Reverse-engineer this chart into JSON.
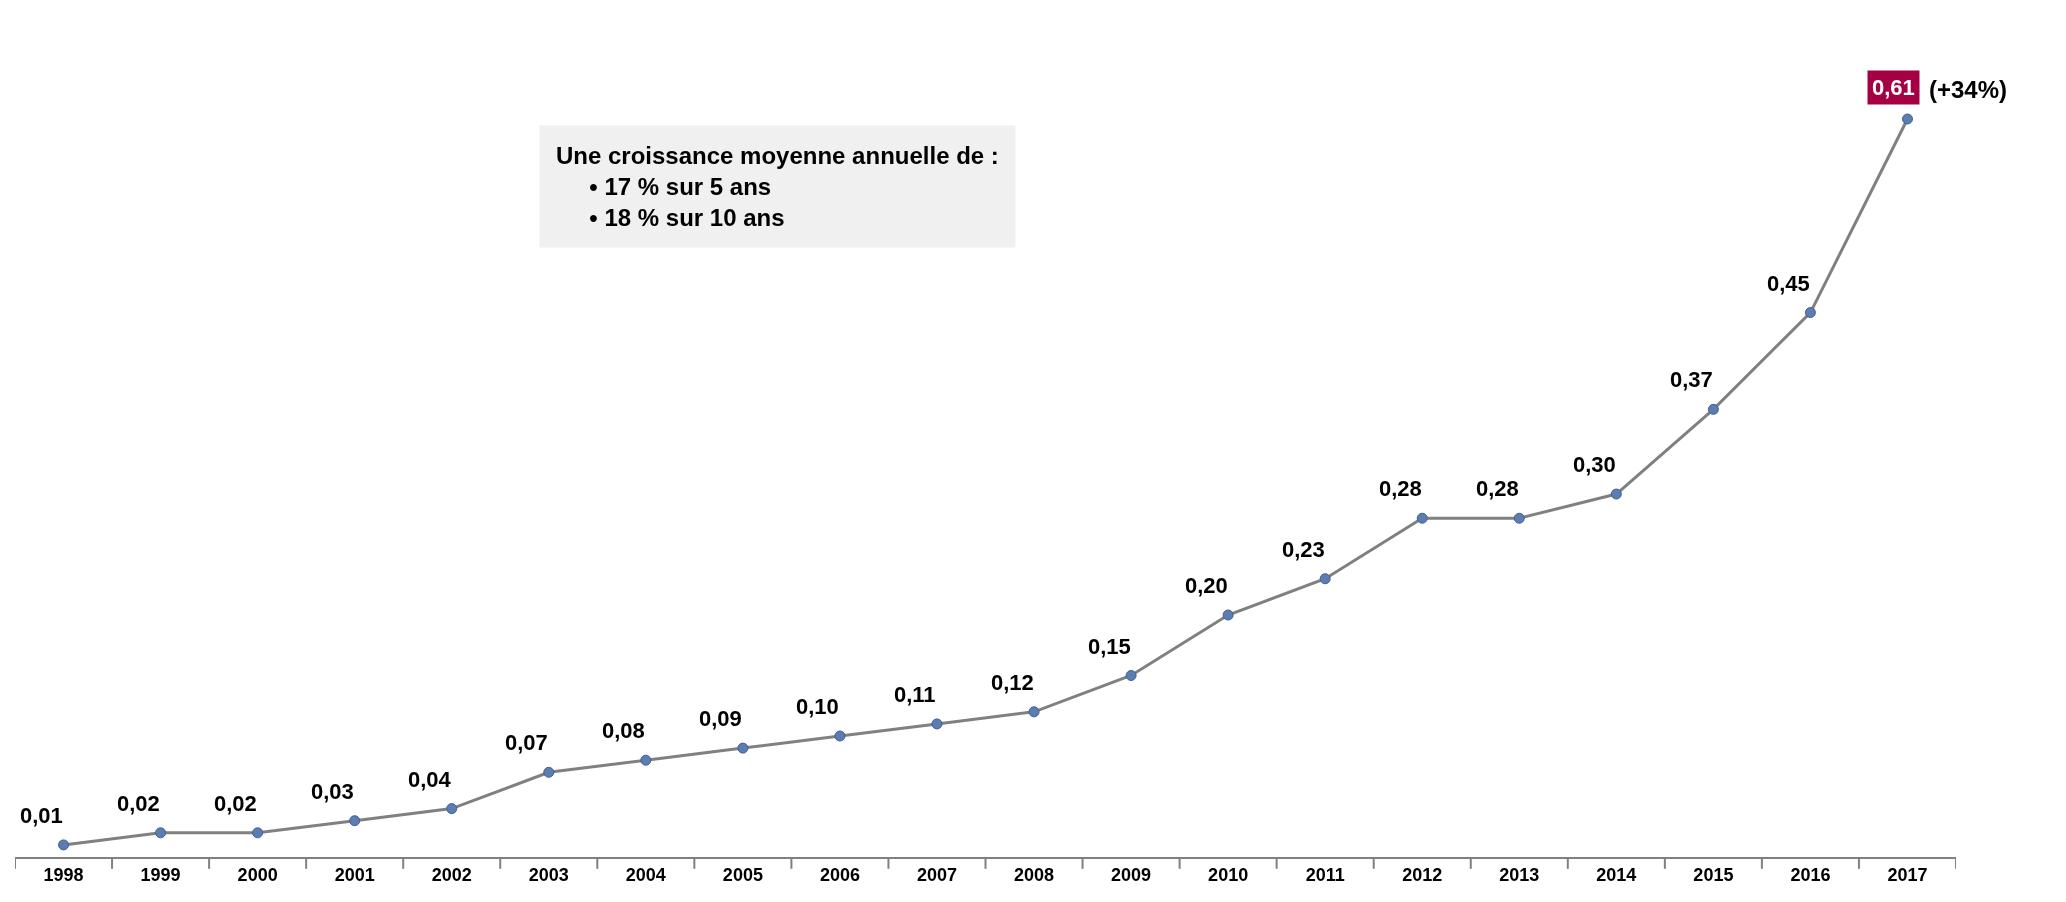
{
  "chart_data": {
    "type": "line",
    "categories": [
      "1998",
      "1999",
      "2000",
      "2001",
      "2002",
      "2003",
      "2004",
      "2005",
      "2006",
      "2007",
      "2008",
      "2009",
      "2010",
      "2011",
      "2012",
      "2013",
      "2014",
      "2015",
      "2016",
      "2017"
    ],
    "series": [
      {
        "color": "#808080",
        "values": [
          0.01,
          0.02,
          0.02,
          0.03,
          0.04,
          0.07,
          0.08,
          0.09,
          0.1,
          0.11,
          0.12,
          0.15,
          0.2,
          0.23,
          0.28,
          0.28,
          0.3,
          0.37,
          0.45,
          0.61
        ],
        "value_labels": [
          "0,01",
          "0,02",
          "0,02",
          "0,03",
          "0,04",
          "0,07",
          "0,08",
          "0,09",
          "0,10",
          "0,11",
          "0,12",
          "0,15",
          "0,20",
          "0,23",
          "0,28",
          "0,28",
          "0,30",
          "0,37",
          "0,45",
          "0,61"
        ]
      }
    ],
    "annotations": [
      "Une croissance moyenne annuelle de :\n• 17 % sur 5 ans\n• 18 % sur 10 ans",
      {
        "text": "(+34%)",
        "x": "2017",
        "y": 0.61
      }
    ],
    "marker": "circle",
    "line_style": "solid"
  }
}
